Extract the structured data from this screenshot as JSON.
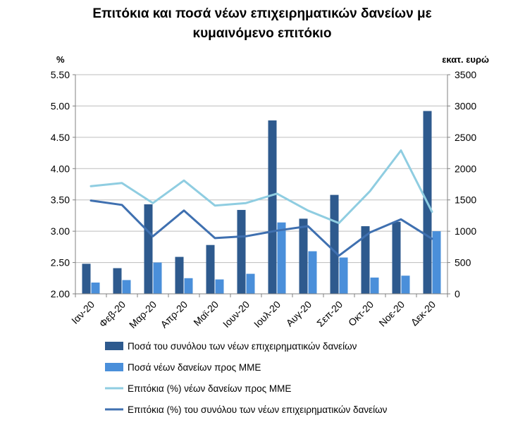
{
  "chart_data": {
    "type": "bar",
    "title_line1": "Επιτόκια και ποσά νέων επιχειρηματικών δανείων με",
    "title_line2": "κυμαινόμενο επιτόκιο",
    "left_unit": "%",
    "right_unit": "εκατ. ευρώ",
    "categories": [
      "Ιαν-20",
      "Φεβ-20",
      "Μαρ-20",
      "Απρ-20",
      "Μαϊ-20",
      "Ιουν-20",
      "Ιουλ-20",
      "Αυγ-20",
      "Σεπ-20",
      "Οκτ-20",
      "Νοε-20",
      "Δεκ-20"
    ],
    "y_left": {
      "min": 2.0,
      "max": 5.5,
      "ticks": [
        "2.00",
        "2.50",
        "3.00",
        "3.50",
        "4.00",
        "4.50",
        "5.00",
        "5.50"
      ]
    },
    "y_right": {
      "min": 0,
      "max": 3500,
      "ticks": [
        "0",
        "500",
        "1000",
        "1500",
        "2000",
        "2500",
        "3000",
        "3500"
      ]
    },
    "grid": true,
    "legend_position": "bottom",
    "series": [
      {
        "name": "Ποσά του συνόλου των νέων επιχειρηματικών δανείων",
        "kind": "bar",
        "axis": "right",
        "color": "#2E5A8E",
        "values": [
          480,
          410,
          1430,
          590,
          780,
          1340,
          2770,
          1200,
          1580,
          1080,
          1150,
          2920
        ]
      },
      {
        "name": "Ποσά νέων δανείων προς ΜΜΕ",
        "kind": "bar",
        "axis": "right",
        "color": "#4A8FDA",
        "values": [
          180,
          220,
          500,
          250,
          230,
          320,
          1140,
          680,
          580,
          260,
          290,
          1000
        ]
      },
      {
        "name": "Επιτόκια (%) νέων δανείων προς ΜΜΕ",
        "kind": "line",
        "axis": "left",
        "color": "#8FCDE1",
        "values": [
          3.72,
          3.77,
          3.45,
          3.81,
          3.41,
          3.45,
          3.6,
          3.33,
          3.13,
          3.64,
          4.29,
          3.31
        ]
      },
      {
        "name": "Επιτόκια (%) του συνόλου των νέων επιχειρηματικών δανείων",
        "kind": "line",
        "axis": "left",
        "color": "#3F70B0",
        "values": [
          3.49,
          3.42,
          2.92,
          3.33,
          2.89,
          2.92,
          3.01,
          3.08,
          2.61,
          2.98,
          3.19,
          2.88
        ]
      }
    ]
  }
}
